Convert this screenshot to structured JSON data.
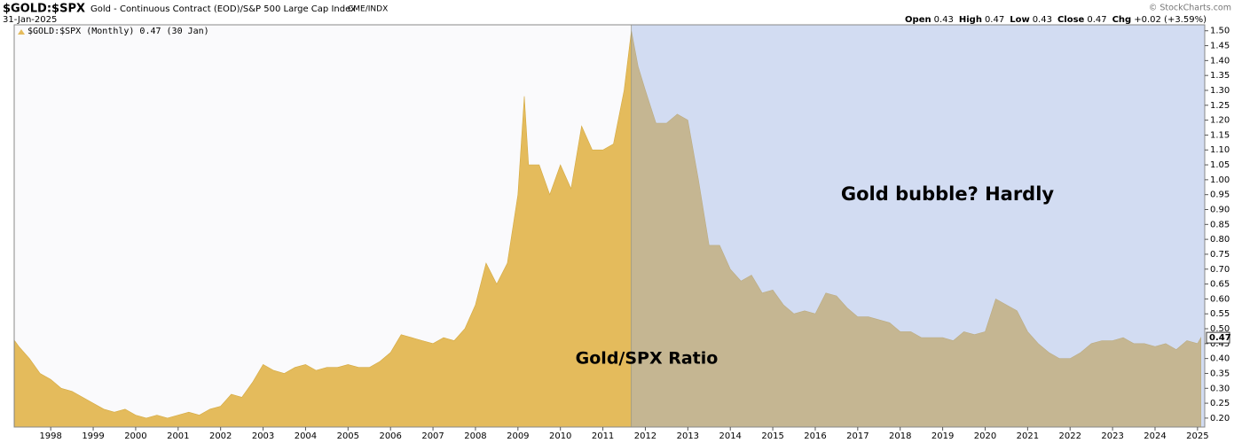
{
  "chart_data": {
    "type": "area",
    "title": "$GOLD:$SPX",
    "subtitle": "Gold - Continuous Contract (EOD)/S&P 500 Large Cap Index",
    "exchange": "CME/INDX",
    "date": "31-Jan-2025",
    "watermark": "© StockCharts.com",
    "quote": [
      {
        "label": "Open",
        "value": 0.43
      },
      {
        "label": "High",
        "value": 0.47
      },
      {
        "label": "Low",
        "value": 0.43
      },
      {
        "label": "Close",
        "value": 0.47
      },
      {
        "label": "Chg",
        "value": "+0.02 (+3.59%)"
      }
    ],
    "legend": "$GOLD:$SPX (Monthly) 0.47 (30 Jan)",
    "annotations": [
      "Gold bubble? Hardly",
      "Gold/SPX Ratio"
    ],
    "last_value": 0.47,
    "shade_start": 2011.67,
    "series": [
      {
        "name": "$GOLD:$SPX",
        "color": "#e4bb5c",
        "x": [
          1997.15,
          1997.25,
          1997.5,
          1997.75,
          1998,
          1998.25,
          1998.5,
          1998.75,
          1999,
          1999.25,
          1999.5,
          1999.75,
          2000,
          2000.25,
          2000.5,
          2000.75,
          2001,
          2001.25,
          2001.5,
          2001.75,
          2002,
          2002.25,
          2002.5,
          2002.75,
          2003,
          2003.25,
          2003.5,
          2003.75,
          2004,
          2004.25,
          2004.5,
          2004.75,
          2005,
          2005.25,
          2005.5,
          2005.75,
          2006,
          2006.25,
          2006.5,
          2006.75,
          2007,
          2007.25,
          2007.5,
          2007.75,
          2008,
          2008.25,
          2008.5,
          2008.75,
          2009,
          2009.15,
          2009.25,
          2009.5,
          2009.75,
          2010,
          2010.25,
          2010.5,
          2010.75,
          2011,
          2011.25,
          2011.5,
          2011.67,
          2011.83,
          2012,
          2012.25,
          2012.5,
          2012.75,
          2013,
          2013.25,
          2013.5,
          2013.75,
          2014,
          2014.25,
          2014.5,
          2014.75,
          2015,
          2015.25,
          2015.5,
          2015.75,
          2016,
          2016.25,
          2016.5,
          2016.75,
          2017,
          2017.25,
          2017.5,
          2017.75,
          2018,
          2018.25,
          2018.5,
          2018.75,
          2019,
          2019.25,
          2019.5,
          2019.75,
          2020,
          2020.25,
          2020.5,
          2020.75,
          2021,
          2021.25,
          2021.5,
          2021.75,
          2022,
          2022.25,
          2022.5,
          2022.75,
          2023,
          2023.25,
          2023.5,
          2023.75,
          2024,
          2024.25,
          2024.5,
          2024.75,
          2025,
          2025.08
        ],
        "values": [
          0.46,
          0.44,
          0.4,
          0.35,
          0.33,
          0.3,
          0.29,
          0.27,
          0.25,
          0.23,
          0.22,
          0.23,
          0.21,
          0.2,
          0.21,
          0.2,
          0.21,
          0.22,
          0.21,
          0.23,
          0.24,
          0.28,
          0.27,
          0.32,
          0.38,
          0.36,
          0.35,
          0.37,
          0.38,
          0.36,
          0.37,
          0.37,
          0.38,
          0.37,
          0.37,
          0.39,
          0.42,
          0.48,
          0.47,
          0.46,
          0.45,
          0.47,
          0.46,
          0.5,
          0.58,
          0.72,
          0.65,
          0.72,
          0.95,
          1.28,
          1.05,
          1.05,
          0.95,
          1.05,
          0.97,
          1.18,
          1.1,
          1.1,
          1.12,
          1.3,
          1.5,
          1.38,
          1.3,
          1.19,
          1.19,
          1.22,
          1.2,
          1.0,
          0.78,
          0.78,
          0.7,
          0.66,
          0.68,
          0.62,
          0.63,
          0.58,
          0.55,
          0.56,
          0.55,
          0.62,
          0.61,
          0.57,
          0.54,
          0.54,
          0.53,
          0.52,
          0.49,
          0.49,
          0.47,
          0.47,
          0.47,
          0.46,
          0.49,
          0.48,
          0.49,
          0.6,
          0.58,
          0.56,
          0.49,
          0.45,
          0.42,
          0.4,
          0.4,
          0.42,
          0.45,
          0.46,
          0.46,
          0.47,
          0.45,
          0.45,
          0.44,
          0.45,
          0.43,
          0.46,
          0.45,
          0.47
        ]
      }
    ],
    "xlim": [
      1997.14,
      2025.17
    ],
    "xticks": [
      1998,
      1999,
      2000,
      2001,
      2002,
      2003,
      2004,
      2005,
      2006,
      2007,
      2008,
      2009,
      2010,
      2011,
      2012,
      2013,
      2014,
      2015,
      2016,
      2017,
      2018,
      2019,
      2020,
      2021,
      2022,
      2023,
      2024,
      2025
    ],
    "ylim": [
      0.17,
      1.52
    ],
    "yticks": [
      {
        "value": 0.2,
        "label": "0.20"
      },
      0.25,
      {
        "value": 0.3,
        "label": "0.30"
      },
      0.35,
      {
        "value": 0.4,
        "label": "0.40"
      },
      0.45,
      {
        "value": 0.5,
        "label": "0.50"
      },
      0.55,
      {
        "value": 0.6,
        "label": "0.60"
      },
      0.65,
      {
        "value": 0.7,
        "label": "0.70"
      },
      0.75,
      {
        "value": 0.8,
        "label": "0.80"
      },
      0.85,
      {
        "value": 0.9,
        "label": "0.90"
      },
      0.95,
      {
        "value": 1,
        "label": "1.00"
      },
      1.05,
      {
        "value": 1.1,
        "label": "1.10"
      },
      1.15,
      {
        "value": 1.2,
        "label": "1.20"
      },
      1.25,
      {
        "value": 1.3,
        "label": "1.30"
      },
      1.35,
      {
        "value": 1.4,
        "label": "1.40"
      },
      1.45,
      {
        "value": 1.5,
        "label": "1.50"
      }
    ]
  }
}
